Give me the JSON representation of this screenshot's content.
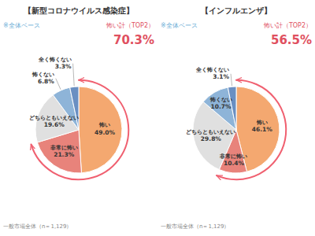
{
  "chart_data": [
    {
      "type": "pie",
      "title": "【新型コロナウイルス感染症】",
      "categories": [
        "怖い",
        "非常に怖い",
        "どちらともいえない",
        "怖くない",
        "全く怖くない"
      ],
      "values": [
        49.0,
        21.3,
        19.6,
        6.8,
        3.3
      ],
      "value_labels": [
        "49.0%",
        "21.3%",
        "19.6%",
        "6.8%",
        "3.3%"
      ],
      "colors": [
        "#F4A870",
        "#E8837B",
        "#E0E0E0",
        "#8EB4D8",
        "#6A8FC2"
      ],
      "data_labels": true,
      "annotations": [
        "怖い計（TOP2）",
        "70.3%",
        "※全体ベース",
        "一般市場全体（n＝1,129）"
      ]
    },
    {
      "type": "pie",
      "title": "【インフルエンザ】",
      "categories": [
        "怖い",
        "非常に怖い",
        "どちらともいえない",
        "怖くない",
        "全く怖くない"
      ],
      "values": [
        46.1,
        10.4,
        29.8,
        10.7,
        3.1
      ],
      "value_labels": [
        "46.1%",
        "10.4%",
        "29.8%",
        "10.7%",
        "3.1%"
      ],
      "colors": [
        "#F4A870",
        "#E8837B",
        "#E0E0E0",
        "#8EB4D8",
        "#6A8FC2"
      ],
      "data_labels": true,
      "annotations": [
        "怖い計（TOP2）",
        "56.5%",
        "※全体ベース",
        "一般市場全体（n＝1,129）"
      ]
    }
  ]
}
